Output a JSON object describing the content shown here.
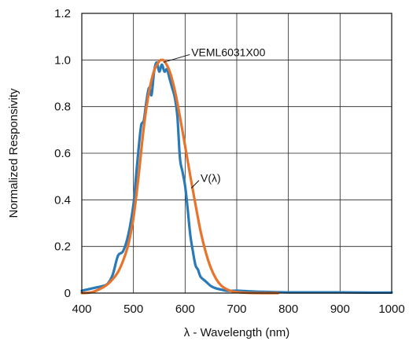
{
  "chart_data": {
    "type": "line",
    "title": "",
    "xlabel": "λ - Wavelength (nm)",
    "ylabel": "Normalized Responsivity",
    "xlim": [
      400,
      1000
    ],
    "ylim": [
      0,
      1.2
    ],
    "x_ticks": [
      400,
      500,
      600,
      700,
      800,
      900,
      1000
    ],
    "y_ticks": [
      0,
      0.2,
      0.4,
      0.6,
      0.8,
      1.0,
      1.2
    ],
    "x_tick_labels": [
      "400",
      "500",
      "600",
      "700",
      "800",
      "900",
      "1000"
    ],
    "y_tick_labels": [
      "0",
      "0.2",
      "0.4",
      "0.6",
      "0.8",
      "1.0",
      "1.2"
    ],
    "grid": true,
    "series": [
      {
        "name": "VEML6031X00",
        "color": "#2a7ab8",
        "points": [
          [
            400,
            0.01
          ],
          [
            410,
            0.015
          ],
          [
            420,
            0.02
          ],
          [
            430,
            0.025
          ],
          [
            440,
            0.03
          ],
          [
            450,
            0.04
          ],
          [
            460,
            0.08
          ],
          [
            470,
            0.16
          ],
          [
            480,
            0.18
          ],
          [
            490,
            0.25
          ],
          [
            500,
            0.38
          ],
          [
            505,
            0.5
          ],
          [
            510,
            0.62
          ],
          [
            515,
            0.72
          ],
          [
            520,
            0.74
          ],
          [
            525,
            0.82
          ],
          [
            530,
            0.88
          ],
          [
            535,
            0.85
          ],
          [
            540,
            0.95
          ],
          [
            545,
            0.99
          ],
          [
            550,
            0.95
          ],
          [
            555,
            0.98
          ],
          [
            560,
            0.95
          ],
          [
            565,
            0.96
          ],
          [
            570,
            0.92
          ],
          [
            575,
            0.88
          ],
          [
            580,
            0.84
          ],
          [
            585,
            0.76
          ],
          [
            590,
            0.58
          ],
          [
            595,
            0.52
          ],
          [
            600,
            0.46
          ],
          [
            605,
            0.36
          ],
          [
            610,
            0.25
          ],
          [
            615,
            0.18
          ],
          [
            620,
            0.12
          ],
          [
            625,
            0.1
          ],
          [
            630,
            0.07
          ],
          [
            640,
            0.05
          ],
          [
            650,
            0.03
          ],
          [
            660,
            0.02
          ],
          [
            670,
            0.015
          ],
          [
            680,
            0.01
          ],
          [
            700,
            0.01
          ],
          [
            720,
            0.008
          ],
          [
            740,
            0.006
          ],
          [
            760,
            0.005
          ],
          [
            800,
            0.003
          ],
          [
            850,
            0.003
          ],
          [
            900,
            0.003
          ],
          [
            950,
            0.002
          ],
          [
            1000,
            0.002
          ]
        ]
      },
      {
        "name": "V(λ)",
        "color": "#e8732a",
        "points": [
          [
            400,
            0.0
          ],
          [
            420,
            0.004
          ],
          [
            440,
            0.023
          ],
          [
            450,
            0.038
          ],
          [
            460,
            0.06
          ],
          [
            470,
            0.09
          ],
          [
            480,
            0.139
          ],
          [
            490,
            0.208
          ],
          [
            500,
            0.323
          ],
          [
            510,
            0.503
          ],
          [
            520,
            0.71
          ],
          [
            530,
            0.862
          ],
          [
            540,
            0.954
          ],
          [
            550,
            0.995
          ],
          [
            555,
            1.0
          ],
          [
            560,
            0.995
          ],
          [
            570,
            0.952
          ],
          [
            580,
            0.87
          ],
          [
            590,
            0.757
          ],
          [
            600,
            0.631
          ],
          [
            610,
            0.503
          ],
          [
            620,
            0.381
          ],
          [
            630,
            0.265
          ],
          [
            640,
            0.175
          ],
          [
            650,
            0.107
          ],
          [
            660,
            0.061
          ],
          [
            670,
            0.032
          ],
          [
            680,
            0.017
          ],
          [
            690,
            0.008
          ],
          [
            700,
            0.004
          ],
          [
            720,
            0.001
          ],
          [
            750,
            0.0
          ],
          [
            780,
            0.0
          ]
        ]
      }
    ],
    "annotations": [
      {
        "text": "VEML6031X00",
        "target": [
          558,
          0.99
        ],
        "label_at": [
          612,
          1.03
        ]
      },
      {
        "text": "V(λ)",
        "target": [
          612,
          0.45
        ],
        "label_at": [
          630,
          0.49
        ]
      }
    ]
  }
}
